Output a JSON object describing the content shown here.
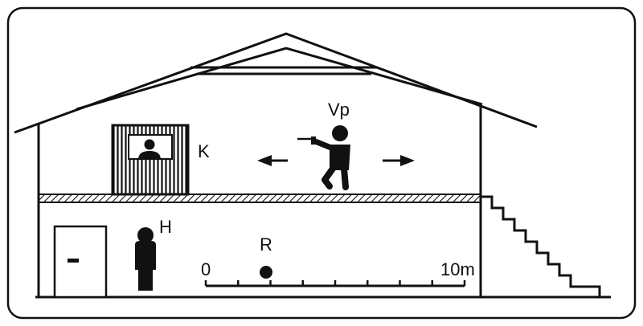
{
  "labels": {
    "shooter": "Vp",
    "booth": "K",
    "person": "H",
    "target": "R",
    "scale_start": "0",
    "scale_end": "10m"
  },
  "colors": {
    "ink": "#111111",
    "background": "#ffffff"
  },
  "scale": {
    "ticks": 9
  },
  "icons": [
    "door-icon",
    "person-icon",
    "gunman-icon",
    "booth-icon",
    "arrow-left-icon",
    "arrow-right-icon",
    "target-dot-icon",
    "stairs-icon"
  ]
}
